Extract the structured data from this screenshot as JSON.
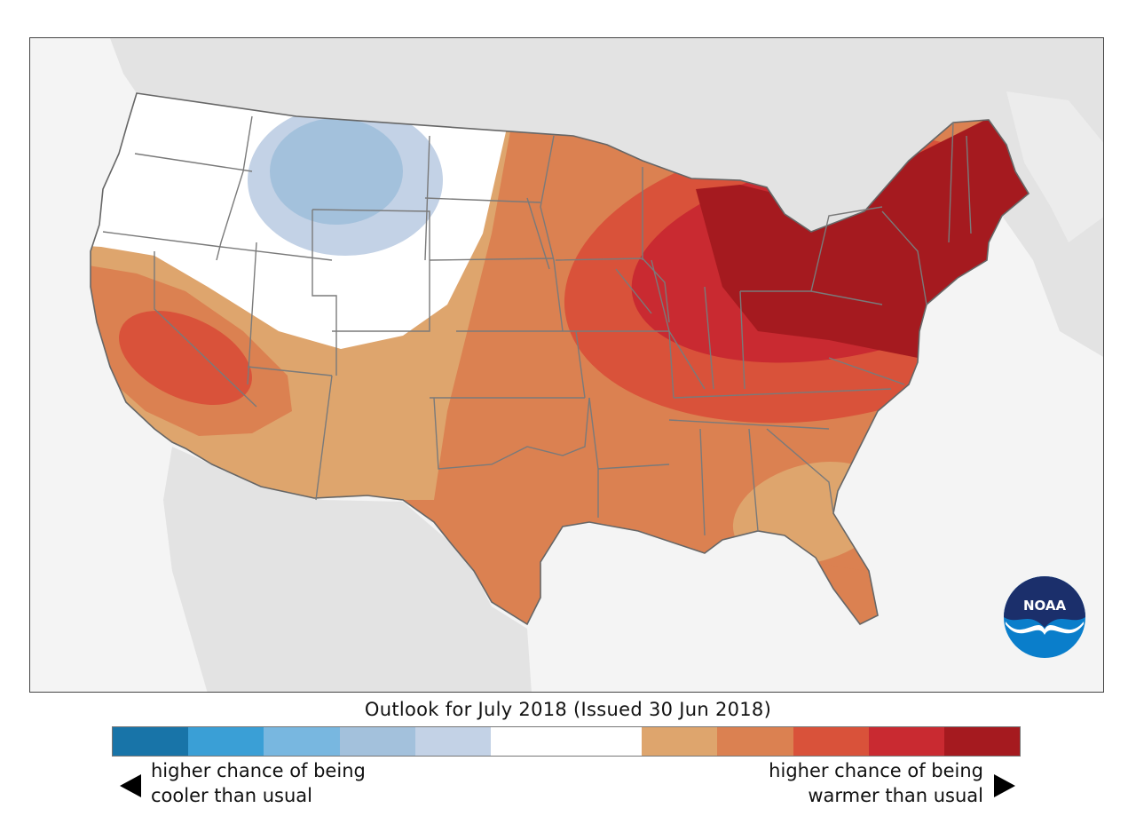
{
  "title": "Outlook for July 2018 (Issued 30 Jun 2018)",
  "legend": {
    "colors": [
      "#1874a8",
      "#3a9fd6",
      "#78b7e0",
      "#a3c1dc",
      "#c3d2e6",
      "#ffffff",
      "#ffffff",
      "#dea56d",
      "#db8151",
      "#d9523a",
      "#c92a31",
      "#a51a1f"
    ],
    "cool_line1": "higher chance of being",
    "cool_line2": "cooler than usual",
    "warm_line1": "higher chance of being",
    "warm_line2": "warmer than usual"
  },
  "map": {
    "land_color": "#e4e4e4",
    "water_color": "#f4f4f4",
    "state_border_color": "#777777",
    "logo_text": "NOAA",
    "logo_name": "noaa-logo"
  }
}
